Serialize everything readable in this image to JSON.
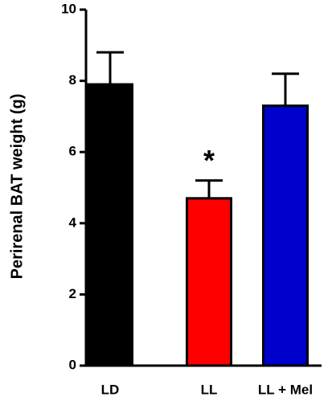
{
  "chart_data": {
    "type": "bar",
    "y_label": "Perirenal BAT weight (g)",
    "categories": [
      "LD",
      "LL",
      "LL + Mel"
    ],
    "values": [
      7.9,
      4.7,
      7.3
    ],
    "errors": [
      0.9,
      0.5,
      0.9
    ],
    "colors": [
      "#000000",
      "#ff0000",
      "#0000cc"
    ],
    "annotations": [
      {
        "text": "*",
        "category": "LL"
      }
    ],
    "ylim": [
      0,
      10
    ],
    "yticks": [
      0,
      2,
      4,
      6,
      8,
      10
    ]
  }
}
